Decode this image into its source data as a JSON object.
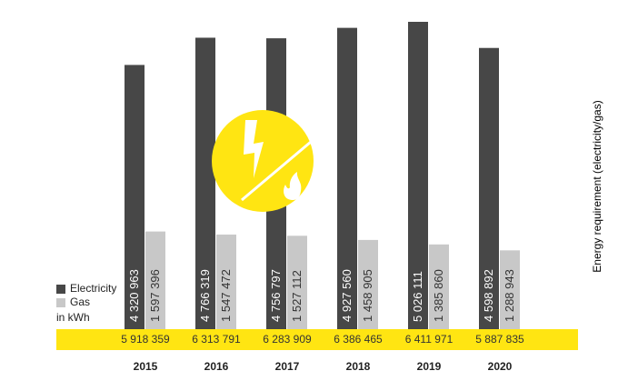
{
  "chart_data": {
    "type": "bar",
    "categories": [
      "2015",
      "2016",
      "2017",
      "2018",
      "2019",
      "2020"
    ],
    "series": [
      {
        "name": "Electricity",
        "color": "#474747",
        "values": [
          4320963,
          4766319,
          4756797,
          4927560,
          5026111,
          4598892
        ],
        "value_labels": [
          "4 320 963",
          "4 766 319",
          "4 756 797",
          "4 927 560",
          "5 026 111",
          "4 598 892"
        ]
      },
      {
        "name": "Gas",
        "color": "#c8c8c8",
        "values": [
          1597396,
          1547472,
          1527112,
          1458905,
          1385860,
          1288943
        ],
        "value_labels": [
          "1 597 396",
          "1 547 472",
          "1 527 112",
          "1 458 905",
          "1 385 860",
          "1 288 943"
        ]
      }
    ],
    "totals": [
      5918359,
      6313791,
      6283909,
      6386465,
      6411971,
      5887835
    ],
    "total_labels": [
      "5 918 359",
      "6 313 791",
      "6 283 909",
      "6 386 465",
      "6 411 971",
      "5 887 835"
    ],
    "unit": "in kWh",
    "y_label": "Energy requirement (electricity/gas)",
    "band_color": "#ffe512"
  }
}
